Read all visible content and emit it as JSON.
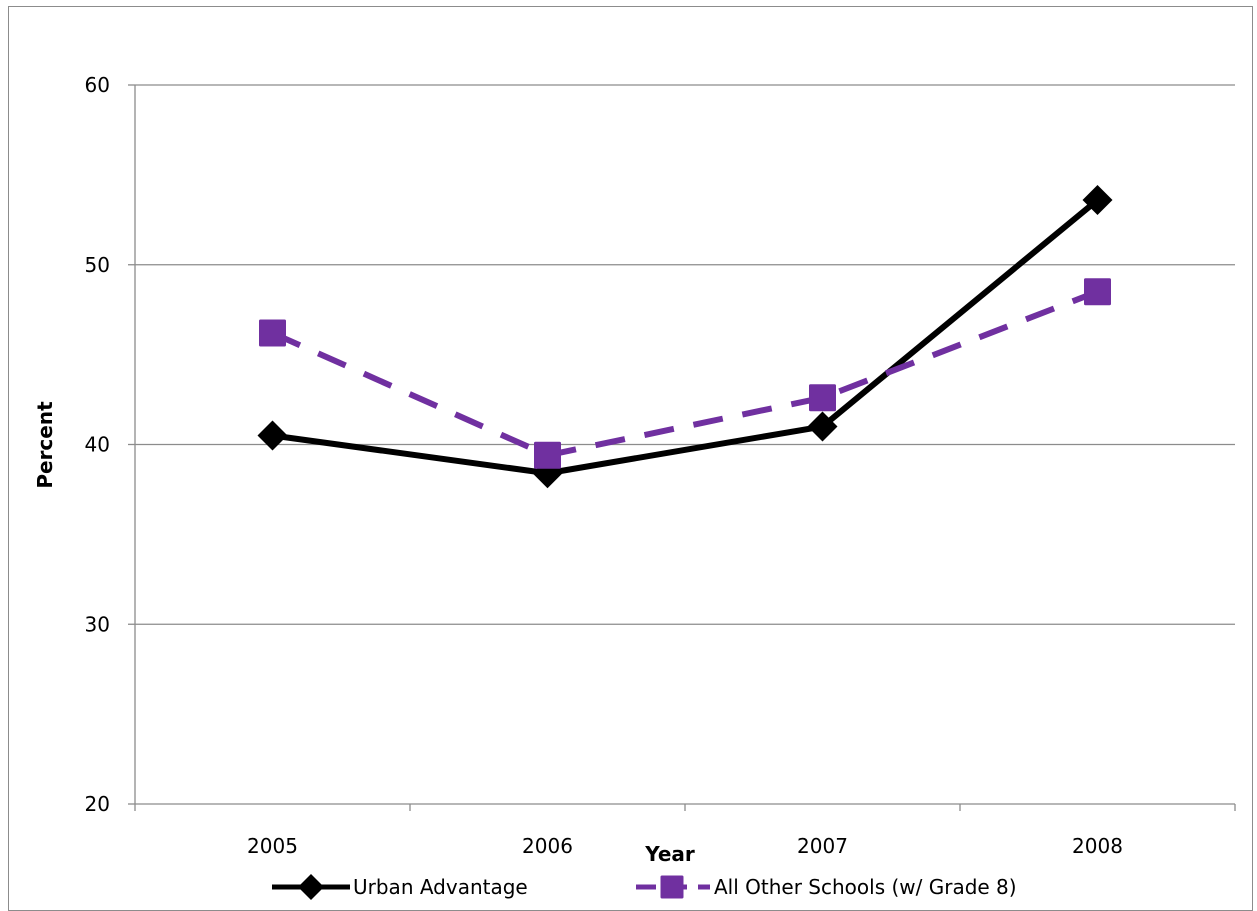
{
  "chart_data": {
    "type": "line",
    "title": "",
    "xlabel": "Year",
    "ylabel": "Percent",
    "categories": [
      "2005",
      "2006",
      "2007",
      "2008"
    ],
    "ylim": [
      20,
      60
    ],
    "yticks": [
      20,
      30,
      40,
      50,
      60
    ],
    "grid": true,
    "legend_position": "bottom",
    "series": [
      {
        "name": "Urban Advantage",
        "values": [
          40.5,
          38.4,
          41.0,
          53.6
        ],
        "color": "#000000",
        "marker": "diamond",
        "line_style": "solid"
      },
      {
        "name": "All Other Schools (w/ Grade 8)",
        "values": [
          46.2,
          39.4,
          42.6,
          48.5
        ],
        "color": "#7030a0",
        "marker": "square",
        "line_style": "dashed"
      }
    ]
  }
}
